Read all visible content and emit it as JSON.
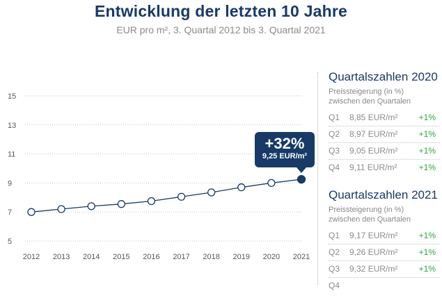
{
  "header": {
    "title": "Entwicklung der letzten 10 Jahre",
    "subtitle": "EUR pro m², 3. Quartal 2012 bis 3. Quartal 2021"
  },
  "chart_data": {
    "type": "line",
    "title": "Entwicklung der letzten 10 Jahre",
    "subtitle": "EUR pro m², 3. Quartal 2012 bis 3. Quartal 2021",
    "xlabel": "",
    "ylabel": "EUR pro m²",
    "categories": [
      "2012",
      "2013",
      "2014",
      "2015",
      "2016",
      "2017",
      "2018",
      "2019",
      "2020",
      "2021"
    ],
    "series": [
      {
        "name": "EUR pro m²",
        "values": [
          7.0,
          7.2,
          7.4,
          7.55,
          7.75,
          8.05,
          8.35,
          8.7,
          9.0,
          9.25
        ]
      }
    ],
    "yticks": [
      5,
      7,
      9,
      11,
      13,
      15
    ],
    "ylim": [
      5,
      15
    ],
    "grid": true,
    "annotation": {
      "category": "2021",
      "change": "+32%",
      "value_label": "9,25 EUR/m²"
    }
  },
  "colors": {
    "brand": "#173a68",
    "line": "#173a68",
    "positive": "#2aa83f",
    "muted": "#8b8b8b",
    "grid": "#c4c4c4"
  },
  "panels": [
    {
      "title": "Quartalszahlen 2020",
      "subtitle_line1": "Preissteigerung (in %)",
      "subtitle_line2": "zwischen den Quartalen",
      "rows": [
        {
          "q": "Q1",
          "value": "8,85 EUR/m²",
          "change": "+1%"
        },
        {
          "q": "Q2",
          "value": "8,97 EUR/m²",
          "change": "+1%"
        },
        {
          "q": "Q3",
          "value": "9,05 EUR/m²",
          "change": "+1%"
        },
        {
          "q": "Q4",
          "value": "9,11 EUR/m²",
          "change": "+1%"
        }
      ]
    },
    {
      "title": "Quartalszahlen 2021",
      "subtitle_line1": "Preissteigerung (in %)",
      "subtitle_line2": "zwischen den Quartalen",
      "rows": [
        {
          "q": "Q1",
          "value": "9,17 EUR/m²",
          "change": "+1%"
        },
        {
          "q": "Q2",
          "value": "9,26 EUR/m²",
          "change": "+1%"
        },
        {
          "q": "Q3",
          "value": "9,32 EUR/m²",
          "change": "+1%"
        },
        {
          "q": "Q4",
          "value": "",
          "change": ""
        }
      ]
    }
  ]
}
